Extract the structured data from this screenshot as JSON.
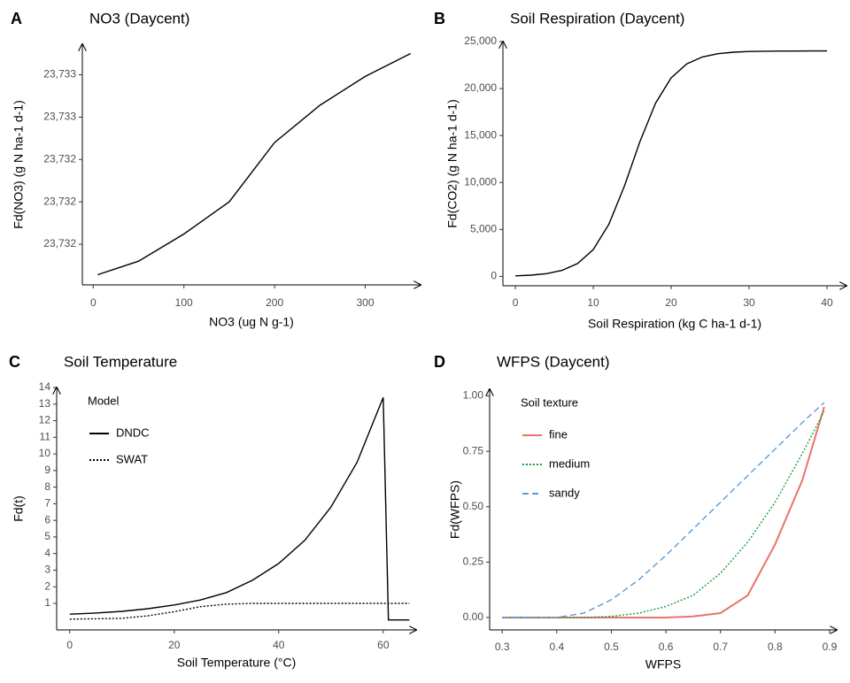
{
  "chart_data": [
    {
      "type": "line",
      "panel": "A",
      "title": "NO3 (Daycent)",
      "x_label": "NO3 (ug N g-1)",
      "y_label": "Fd(NO3) (g N ha-1 d-1)",
      "color": "#000000",
      "x": [
        5,
        50,
        100,
        150,
        200,
        250,
        300,
        350
      ],
      "values": [
        23731.57,
        23731.65,
        23731.81,
        23732.0,
        23732.35,
        23732.57,
        23732.74,
        23732.875
      ],
      "xlim": [
        -12,
        361
      ],
      "xticks": [
        0,
        100,
        200,
        300
      ],
      "ylim": [
        23731.51,
        23732.93
      ],
      "yticks": [
        {
          "value": 23731.75,
          "label": "23,732"
        },
        {
          "value": 23732.0,
          "label": "23,732"
        },
        {
          "value": 23732.25,
          "label": "23,732"
        },
        {
          "value": 23732.5,
          "label": "23,733"
        },
        {
          "value": 23732.75,
          "label": "23,733"
        }
      ]
    },
    {
      "type": "line",
      "panel": "B",
      "title": "Soil Respiration (Daycent)",
      "x_label": "Soil Respiration (kg C ha-1 d-1)",
      "y_label": "Fd(CO2) (g N ha-1 d-1)",
      "color": "#000000",
      "x": [
        0,
        2,
        4,
        6,
        8,
        10,
        12,
        14,
        16,
        18,
        20,
        22,
        24,
        26,
        28,
        30,
        32,
        34,
        36,
        38,
        40
      ],
      "values": [
        59,
        132,
        290,
        638,
        1376,
        2861,
        5556,
        9631,
        14369,
        18444,
        21139,
        22624,
        23362,
        23709,
        23868,
        23941,
        23970,
        23990,
        23995,
        23998,
        24000
      ],
      "xlim": [
        -1.6,
        42.5
      ],
      "xticks": [
        0,
        10,
        20,
        30,
        40
      ],
      "ylim": [
        -1000,
        25000
      ],
      "yticks": [
        0,
        {
          "value": 5000,
          "label": "5,000"
        },
        {
          "value": 10000,
          "label": "10,000"
        },
        {
          "value": 15000,
          "label": "15,000"
        },
        {
          "value": 20000,
          "label": "20,000"
        },
        {
          "value": 25000,
          "label": "25,000"
        }
      ]
    },
    {
      "type": "line",
      "panel": "C",
      "title": "Soil Temperature",
      "x_label": "Soil Temperature (°C)",
      "y_label": "Fd(t)",
      "legend_title": "Model",
      "legend_position": "top-left",
      "x": [
        0,
        5,
        10,
        15,
        20,
        25,
        30,
        35,
        40,
        45,
        50,
        55,
        60,
        61,
        65
      ],
      "series": [
        {
          "name": "DNDC",
          "color": "#000000",
          "dash": "solid",
          "values": [
            0.35,
            0.42,
            0.52,
            0.68,
            0.9,
            1.2,
            1.65,
            2.4,
            3.4,
            4.8,
            6.8,
            9.5,
            13.4,
            0,
            0
          ]
        },
        {
          "name": "SWAT",
          "color": "#000000",
          "dash": "dotted",
          "values": [
            0.05,
            0.07,
            0.1,
            0.25,
            0.5,
            0.8,
            0.95,
            1,
            1,
            1,
            1,
            1,
            1,
            1,
            1
          ]
        }
      ],
      "xlim": [
        -2.5,
        66.3
      ],
      "xticks": [
        0,
        20,
        40,
        60
      ],
      "ylim": [
        -0.6,
        14
      ],
      "yticks": [
        1,
        2,
        3,
        4,
        5,
        6,
        7,
        8,
        9,
        10,
        11,
        12,
        13,
        14
      ]
    },
    {
      "type": "line",
      "panel": "D",
      "title": "WFPS (Daycent)",
      "x_label": "WFPS",
      "y_label": "Fd(WFPS)",
      "legend_title": "Soil texture",
      "legend_position": "top-left",
      "x": [
        0.3,
        0.35,
        0.4,
        0.45,
        0.5,
        0.55,
        0.6,
        0.65,
        0.7,
        0.75,
        0.8,
        0.85,
        0.89
      ],
      "series": [
        {
          "name": "fine",
          "color": "#e8746b",
          "dash": "solid",
          "values": [
            0,
            0,
            0,
            0,
            0,
            0,
            0,
            0.005,
            0.02,
            0.1,
            0.33,
            0.62,
            0.95
          ]
        },
        {
          "name": "medium",
          "color": "#1a9c3e",
          "dash": "dotted",
          "values": [
            0,
            0,
            0,
            0,
            0.005,
            0.02,
            0.05,
            0.1,
            0.2,
            0.34,
            0.52,
            0.74,
            0.93
          ]
        },
        {
          "name": "sandy",
          "color": "#5b9bd5",
          "dash": "dashed",
          "values": [
            0,
            0,
            0,
            0.02,
            0.08,
            0.17,
            0.28,
            0.4,
            0.52,
            0.64,
            0.76,
            0.88,
            0.97
          ]
        }
      ],
      "xlim": [
        0.277,
        0.913
      ],
      "xticks": [
        0.3,
        0.4,
        0.5,
        0.6,
        0.7,
        0.8,
        0.9
      ],
      "ylim": [
        -0.056,
        1.03
      ],
      "yticks": [
        {
          "value": 0,
          "label": "0.00"
        },
        {
          "value": 0.25,
          "label": "0.25"
        },
        {
          "value": 0.5,
          "label": "0.50"
        },
        {
          "value": 0.75,
          "label": "0.75"
        },
        {
          "value": 1,
          "label": "1.00"
        }
      ]
    }
  ]
}
